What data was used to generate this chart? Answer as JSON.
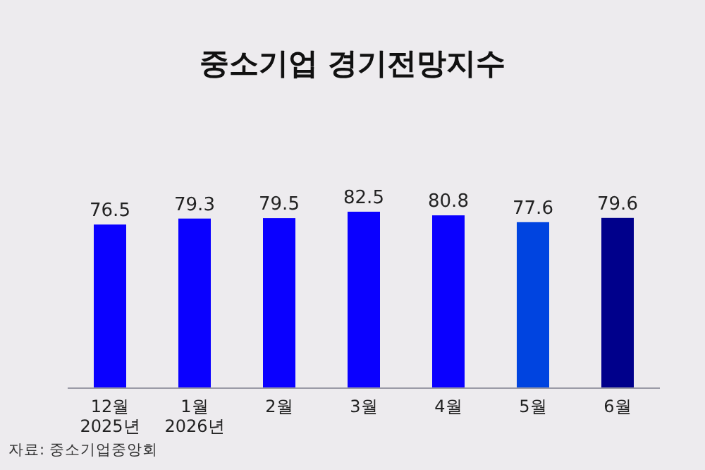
{
  "chart_data": {
    "type": "bar",
    "title": "중소기업 경기전망지수",
    "categories": [
      "12월\n2025년",
      "1월\n2026년",
      "2월",
      "3월",
      "4월",
      "5월",
      "6월"
    ],
    "values": [
      76.5,
      79.3,
      79.5,
      82.5,
      80.8,
      77.6,
      79.6
    ],
    "colors": [
      "#0a00ff",
      "#0a00ff",
      "#0a00ff",
      "#0a00ff",
      "#0a00ff",
      "#0044e0",
      "#00008b"
    ],
    "data_labels": true,
    "annotations": [
      "자료: 중소기업중앙회"
    ]
  }
}
